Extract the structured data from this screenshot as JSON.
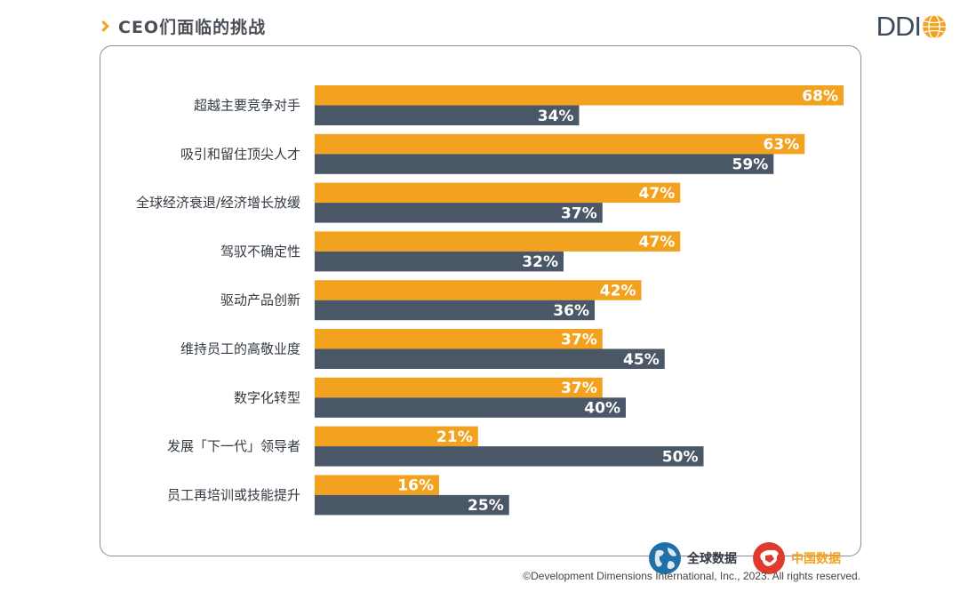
{
  "header": {
    "title": "CEO们面临的挑战"
  },
  "logo": {
    "text": "DDI"
  },
  "legend": {
    "global": {
      "label": "全球数据",
      "color": "#4a5766"
    },
    "china": {
      "label": "中国数据",
      "color": "#f3a21f"
    }
  },
  "copyright": "©Development Dimensions International, Inc., 2023. All rights reserved.",
  "chart_data": {
    "type": "bar",
    "orientation": "horizontal",
    "title": "CEO们面临的挑战",
    "categories": [
      "超越主要竞争对手",
      "吸引和留住顶尖人才",
      "全球经济衰退/经济增长放缓",
      "驾驭不确定性",
      "驱动产品创新",
      "维持员工的高敬业度",
      "数字化转型",
      "发展「下一代」领导者",
      "员工再培训或技能提升"
    ],
    "series": [
      {
        "name": "中国数据",
        "color": "#f3a21f",
        "values": [
          68,
          63,
          47,
          47,
          42,
          37,
          37,
          21,
          16
        ]
      },
      {
        "name": "全球数据",
        "color": "#4a5766",
        "values": [
          34,
          59,
          37,
          32,
          36,
          45,
          40,
          50,
          25
        ]
      }
    ],
    "value_suffix": "%",
    "xlim": [
      0,
      68
    ],
    "grid": false
  }
}
